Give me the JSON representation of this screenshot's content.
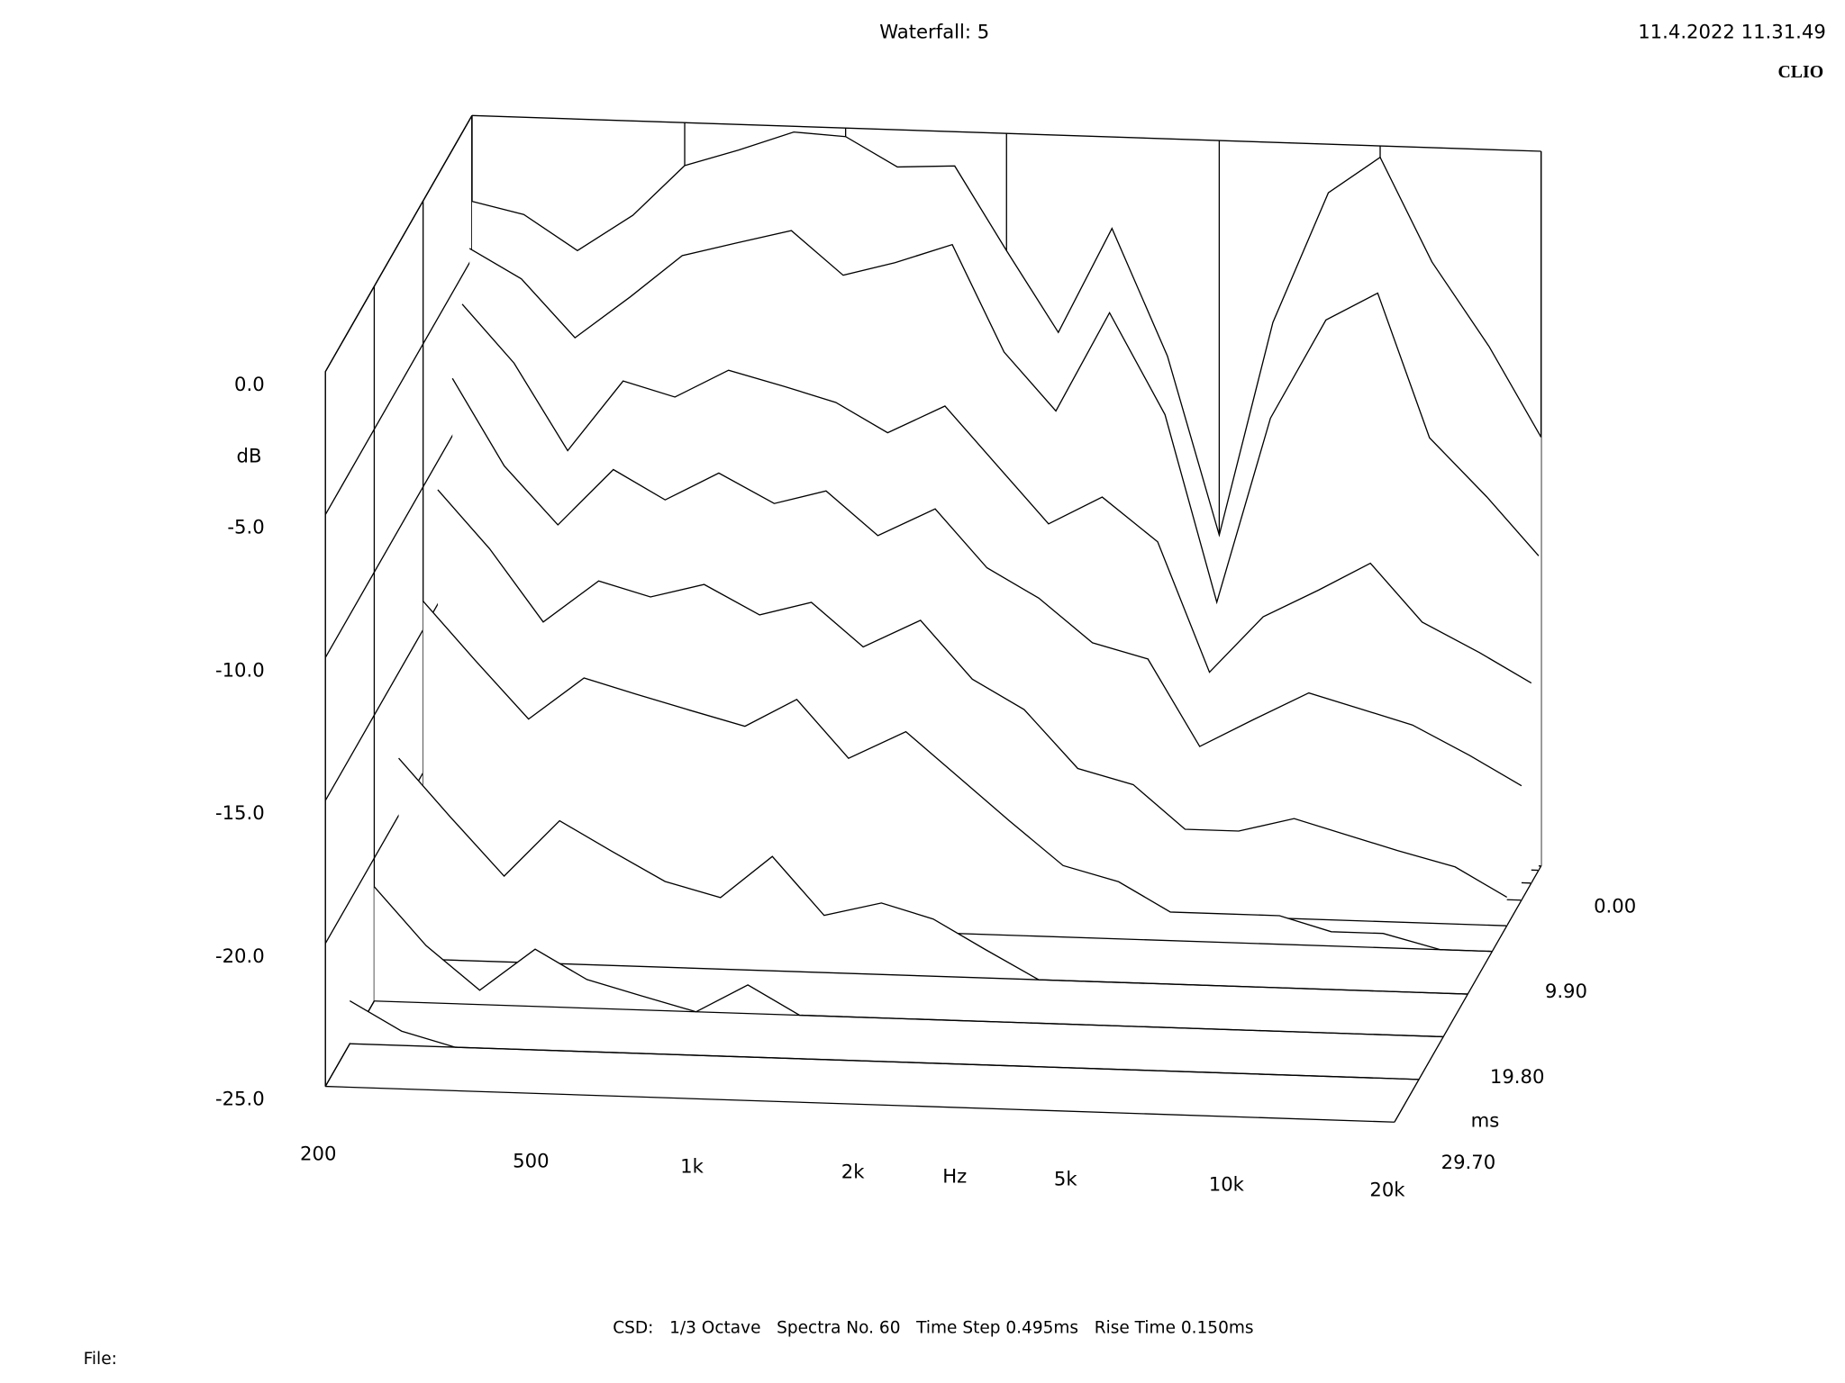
{
  "chart_data": {
    "type": "waterfall",
    "title": "Waterfall: 5",
    "timestamp": "11.4.2022 11.31.49",
    "brand": "CLIO",
    "note": "CSD:   1/3 Octave   Spectra No. 60   Time Step 0.495ms   Rise Time 0.150ms",
    "file_label": "File:",
    "xlabel": "Hz",
    "ylabel": "dB",
    "zlabel": "ms",
    "xscale": "log",
    "xlim": [
      200,
      20000
    ],
    "xticks": [
      200,
      500,
      {
        "value": 1000,
        "label": "1k"
      },
      {
        "value": 2000,
        "label": "2k"
      },
      {
        "value": 5000,
        "label": "5k"
      },
      {
        "value": 10000,
        "label": "10k"
      },
      {
        "value": 20000,
        "label": "20k"
      }
    ],
    "ylim": [
      -25,
      0
    ],
    "yticks": [
      {
        "value": 0,
        "label": "0.0"
      },
      {
        "value": -5,
        "label": "-5.0"
      },
      {
        "value": -10,
        "label": "-10.0"
      },
      {
        "value": -15,
        "label": "-15.0"
      },
      {
        "value": -20,
        "label": "-20.0"
      },
      {
        "value": -25,
        "label": "-25.0"
      }
    ],
    "zlim": [
      0,
      29.7
    ],
    "zticks": [
      {
        "value": 0,
        "label": "0.00"
      },
      {
        "value": 9.9,
        "label": "9.90"
      },
      {
        "value": 19.8,
        "label": "19.80"
      },
      {
        "value": 29.7,
        "label": "29.70"
      }
    ],
    "color": "#000000",
    "x": [
      200,
      250,
      315,
      400,
      500,
      630,
      800,
      1000,
      1250,
      1600,
      2000,
      2500,
      3150,
      4000,
      5000,
      6300,
      8000,
      10000,
      12500,
      16000,
      20000
    ],
    "series": [
      {
        "t": 0,
        "values": [
          -3.0,
          -3.4,
          -4.6,
          -3.3,
          -1.5,
          -0.9,
          -0.2,
          -0.3,
          -1.3,
          -1.2,
          -4.1,
          -6.9,
          -3.2,
          -7.6,
          -13.8,
          -6.3,
          -1.7,
          -0.4,
          -4,
          -6.9,
          -10
        ]
      },
      {
        "t": 0.495,
        "values": [
          -4.5,
          -5.5,
          -7.5,
          -6,
          -4.5,
          -4,
          -3.5,
          -5,
          -4.5,
          -3.8,
          -7.5,
          -9.5,
          -6,
          -9.5,
          -16,
          -9.5,
          -6,
          -5,
          -10,
          -12,
          -14
        ]
      },
      {
        "t": 1.98,
        "values": [
          -6,
          -8,
          -11,
          -8.5,
          -9,
          -8,
          -8.5,
          -9,
          -10,
          -9,
          -11,
          -13,
          -12,
          -13.5,
          -18,
          -16,
          -15,
          -14,
          -16,
          -17,
          -18
        ]
      },
      {
        "t": 3.96,
        "values": [
          -8,
          -11,
          -13,
          -11,
          -12,
          -11,
          -12,
          -11.5,
          -13,
          -12,
          -14,
          -15,
          -16.5,
          -17,
          -20,
          -19,
          -18,
          -18.5,
          -19,
          -20,
          -21
        ]
      },
      {
        "t": 6.93,
        "values": [
          -11,
          -13,
          -15.5,
          -14,
          -14.5,
          -14,
          -15,
          -14.5,
          -16,
          -15,
          -17,
          -18,
          -20,
          -20.5,
          -22,
          -22,
          -21.5,
          -22,
          -22.5,
          -23,
          -24
        ]
      },
      {
        "t": 9.9,
        "values": [
          -14,
          -16,
          -18,
          -16.5,
          -17,
          -17.5,
          -18,
          -17,
          -19,
          -18,
          -19.5,
          -21,
          -22.5,
          -23,
          -24,
          -24,
          -24,
          -24.5,
          -24.5,
          -25,
          -25
        ]
      },
      {
        "t": 14.85,
        "values": [
          -18,
          -20,
          -22,
          -20,
          -21,
          -22,
          -22.5,
          -21,
          -23,
          -22.5,
          -23,
          -24,
          -25,
          -25,
          -25,
          -25,
          -25,
          -25,
          -25,
          -25,
          -25
        ]
      },
      {
        "t": 19.8,
        "values": [
          -21,
          -23,
          -24.5,
          -23,
          -24,
          -24.5,
          -25,
          -24,
          -25,
          -25,
          -25,
          -25,
          -25,
          -25,
          -25,
          -25,
          -25,
          -25,
          -25,
          -25,
          -25
        ]
      },
      {
        "t": 24.75,
        "values": [
          -23.5,
          -24.5,
          -25,
          -25,
          -25,
          -25,
          -25,
          -25,
          -25,
          -25,
          -25,
          -25,
          -25,
          -25,
          -25,
          -25,
          -25,
          -25,
          -25,
          -25,
          -25
        ]
      }
    ]
  }
}
